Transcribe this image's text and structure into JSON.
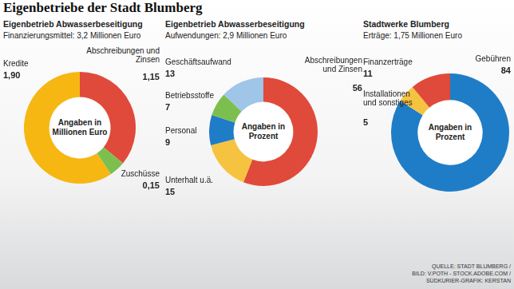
{
  "title": "Eigenbetriebe der Stadt Blumberg",
  "chart_data": [
    {
      "type": "doughnut",
      "title": "Eigenbetrieb Abwasserbeseitigung",
      "subtitle": "Finanzierungsmittel: 3,2 Millionen Euro",
      "center_label": "Angaben in Millionen Euro",
      "categories": [
        "Abschreibungen und Zinsen",
        "Zuschüsse",
        "Kredite"
      ],
      "values": [
        1.15,
        0.15,
        1.9
      ],
      "value_labels": [
        "1,15",
        "0,15",
        "1,90"
      ],
      "colors": [
        "#e04a3a",
        "#7dbf4f",
        "#f6b713"
      ],
      "data_labels": true
    },
    {
      "type": "doughnut",
      "title": "Eigenbetrieb Abwasserbeseitigung",
      "subtitle": "Aufwendungen: 2,9 Millionen Euro",
      "center_label": "Angaben in Prozent",
      "categories": [
        "Abschreibungen und Zinsen",
        "Unterhalt u.ä.",
        "Personal",
        "Betriebsstoffe",
        "Geschäftsaufwand"
      ],
      "values": [
        56,
        15,
        9,
        7,
        13
      ],
      "colors": [
        "#e04a3a",
        "#f6c340",
        "#1f7dc7",
        "#7dbf4f",
        "#9fc5e8"
      ],
      "data_labels": true
    },
    {
      "type": "doughnut",
      "title": "Stadtwerke Blumberg",
      "subtitle": "Erträge: 1,75 Millionen Euro",
      "center_label": "Angaben in Prozent",
      "categories": [
        "Gebühren",
        "Installationen und sonstiges",
        "Finanzerträge"
      ],
      "values": [
        84,
        5,
        11
      ],
      "colors": [
        "#1f7dc7",
        "#f6c340",
        "#e04a3a"
      ],
      "data_labels": true
    }
  ],
  "source": [
    "QUELLE: STADT BLUMBERG /",
    "BILD: V.POTH - STOCK.ADOBE.COM /",
    "SÜDKURIER-GRAFIK: KERSTAN"
  ]
}
